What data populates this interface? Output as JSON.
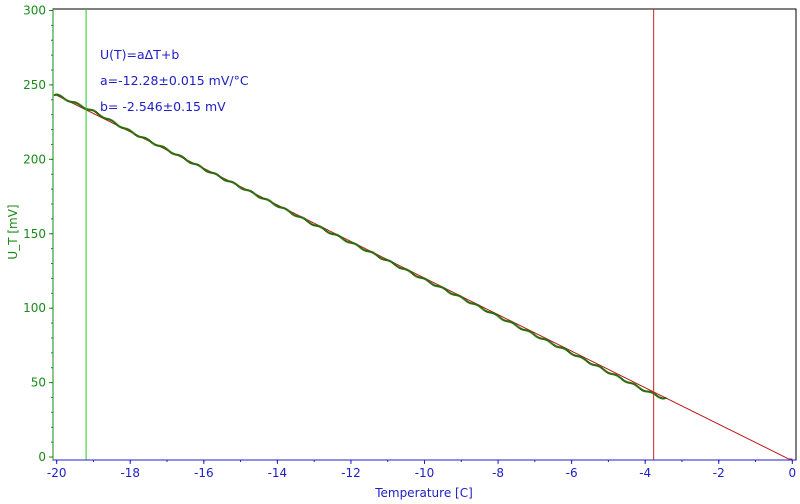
{
  "chart_data": {
    "type": "scatter",
    "title": "",
    "xlabel": "Temperature [C]",
    "ylabel": "U_T [mV]",
    "xlim": [
      -20.1,
      0.1
    ],
    "ylim": [
      -2,
      301
    ],
    "xticks": [
      -20,
      -18,
      -16,
      -14,
      -12,
      -10,
      -8,
      -6,
      -4,
      -2,
      0
    ],
    "yticks": [
      0,
      50,
      100,
      150,
      200,
      250,
      300
    ],
    "grid": false,
    "annotations": [
      "U(T)=aΔT+b",
      "a=-12.28±0.015 mV/°C",
      "b= -2.546±0.15 mV"
    ],
    "vertical_lines": [
      {
        "x": -19.2,
        "color": "#22cc22"
      },
      {
        "x": -3.77,
        "color": "#cc2222"
      }
    ],
    "series": [
      {
        "kind": "measured",
        "color": "#2e6b0e",
        "x_range": [
          -20.05,
          -3.45
        ],
        "points": [
          [
            -20.0,
            243.2
          ],
          [
            -19.0,
            232.2
          ],
          [
            -18.0,
            218.7
          ],
          [
            -17.0,
            206.5
          ],
          [
            -16.0,
            193.6
          ],
          [
            -15.0,
            181.4
          ],
          [
            -14.0,
            169.0
          ],
          [
            -13.0,
            156.1
          ],
          [
            -12.0,
            144.0
          ],
          [
            -11.0,
            131.8
          ],
          [
            -10.0,
            119.2
          ],
          [
            -9.0,
            107.0
          ],
          [
            -8.0,
            94.5
          ],
          [
            -7.0,
            82.0
          ],
          [
            -6.0,
            69.8
          ],
          [
            -5.0,
            57.1
          ],
          [
            -4.0,
            44.6
          ],
          [
            -3.5,
            39.5
          ]
        ]
      },
      {
        "kind": "fit",
        "color": "#b81a1a",
        "slope": -12.28,
        "intercept": -2.546,
        "x_range": [
          -20.0,
          -0.1
        ]
      }
    ]
  }
}
